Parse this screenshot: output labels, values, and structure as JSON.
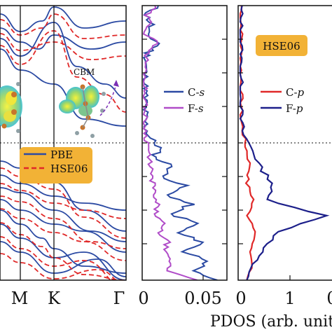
{
  "colors": {
    "pbe": "#2b4aa3",
    "hse": "#e02828",
    "cs": "#2b4aa3",
    "fs": "#b04cc8",
    "cp": "#e02828",
    "fp": "#1c1f8a",
    "legend_box": "#f2b236"
  },
  "chart_data": [
    {
      "type": "line",
      "title": "",
      "xlabel": "",
      "ylabel": "",
      "kpoint_labels": [
        "M",
        "K",
        "Γ"
      ],
      "legend": [
        "PBE",
        "HSE06"
      ],
      "annotation": "CBM",
      "fermi_level_line": "dashed",
      "series": [
        {
          "name": "PBE",
          "style": "solid",
          "note": "band structure"
        },
        {
          "name": "HSE06",
          "style": "dashed",
          "note": "band structure"
        }
      ]
    },
    {
      "type": "line",
      "xlabel": "",
      "xticks": [
        "0",
        "0.05"
      ],
      "xlim": [
        0,
        0.06
      ],
      "legend": [
        "C-s",
        "F-s"
      ],
      "series": [
        {
          "name": "C-s",
          "values": [
            0.001,
            0.002,
            0.005,
            0.012,
            0.008,
            0.022,
            0.014,
            0.03,
            0.018,
            0.035,
            0.02,
            0.04,
            0.025,
            0.045,
            0.03,
            0.05,
            0.035,
            0.055
          ]
        },
        {
          "name": "F-s",
          "values": [
            0.001,
            0.001,
            0.002,
            0.004,
            0.003,
            0.006,
            0.005,
            0.008,
            0.007,
            0.01,
            0.009,
            0.014,
            0.012,
            0.018,
            0.015,
            0.02,
            0.018,
            0.04
          ]
        }
      ]
    },
    {
      "type": "line",
      "xlabel": "PDOS (arb. units)",
      "xticks": [
        "0",
        "1"
      ],
      "xlim": [
        0,
        1.4
      ],
      "legend": [
        "C-p",
        "F-p"
      ],
      "tag": "HSE06",
      "series": [
        {
          "name": "C-p",
          "values": [
            0.05,
            0.1,
            0.15,
            0.1,
            0.2,
            0.12,
            0.25,
            0.15,
            0.18,
            0.1
          ]
        },
        {
          "name": "F-p",
          "values": [
            0.05,
            0.2,
            0.3,
            0.5,
            0.4,
            1.3,
            0.6,
            0.35,
            0.2,
            0.1
          ]
        }
      ]
    }
  ]
}
